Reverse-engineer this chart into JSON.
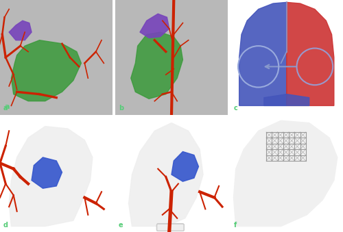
{
  "figsize": [
    5.0,
    3.39
  ],
  "dpi": 100,
  "layout": {
    "rows": 2,
    "cols": 3,
    "labels": [
      "a",
      "b",
      "c",
      "d",
      "e",
      "f"
    ]
  },
  "panel_colors": {
    "a": "#d0cece",
    "b": "#d0cece",
    "c": "#d4b896",
    "d": "#c8b89a",
    "e": "#c8b89a",
    "f": "#2e6b4f"
  },
  "label_color": "#4aab6b",
  "label_bg": "#ffffff",
  "border_color": "#ffffff",
  "border_width": 2,
  "panels": [
    {
      "id": "a",
      "bg": "#b0b0b0",
      "elements": [
        {
          "type": "skull_front",
          "color": "#c8c8c8"
        },
        {
          "type": "vessels",
          "color": "#cc2200"
        },
        {
          "type": "mandible",
          "color": "#3a8a3a"
        },
        {
          "type": "tumor",
          "color": "#7744aa"
        }
      ]
    },
    {
      "id": "b",
      "bg": "#b0b0b0",
      "elements": [
        {
          "type": "skull_side",
          "color": "#c8c8c8"
        },
        {
          "type": "vessels",
          "color": "#cc2200"
        },
        {
          "type": "mandible",
          "color": "#3a8a3a"
        },
        {
          "type": "tumor",
          "color": "#7744aa"
        }
      ]
    },
    {
      "id": "c",
      "bg": "#d4b896",
      "elements": [
        {
          "type": "skull_top_blue",
          "color": "#5555cc"
        },
        {
          "type": "skull_top_red",
          "color": "#cc3333"
        },
        {
          "type": "circles",
          "color": "#8899cc"
        }
      ]
    },
    {
      "id": "d",
      "bg": "#c8b89a",
      "elements": [
        {
          "type": "3d_print_skull",
          "color": "#ffffff"
        },
        {
          "type": "3d_vessels",
          "color": "#cc2200"
        },
        {
          "type": "3d_tumor",
          "color": "#3355cc"
        }
      ]
    },
    {
      "id": "e",
      "bg": "#c8b89a",
      "elements": [
        {
          "type": "3d_print_skull2",
          "color": "#ffffff"
        },
        {
          "type": "3d_vessels2",
          "color": "#cc2200"
        },
        {
          "type": "3d_tumor2",
          "color": "#3355cc"
        }
      ]
    },
    {
      "id": "f",
      "bg": "#2e6b4f",
      "elements": [
        {
          "type": "3d_skull_side",
          "color": "#f0f0f0"
        },
        {
          "type": "titanium_mesh",
          "color": "#aaaaaa"
        }
      ]
    }
  ]
}
